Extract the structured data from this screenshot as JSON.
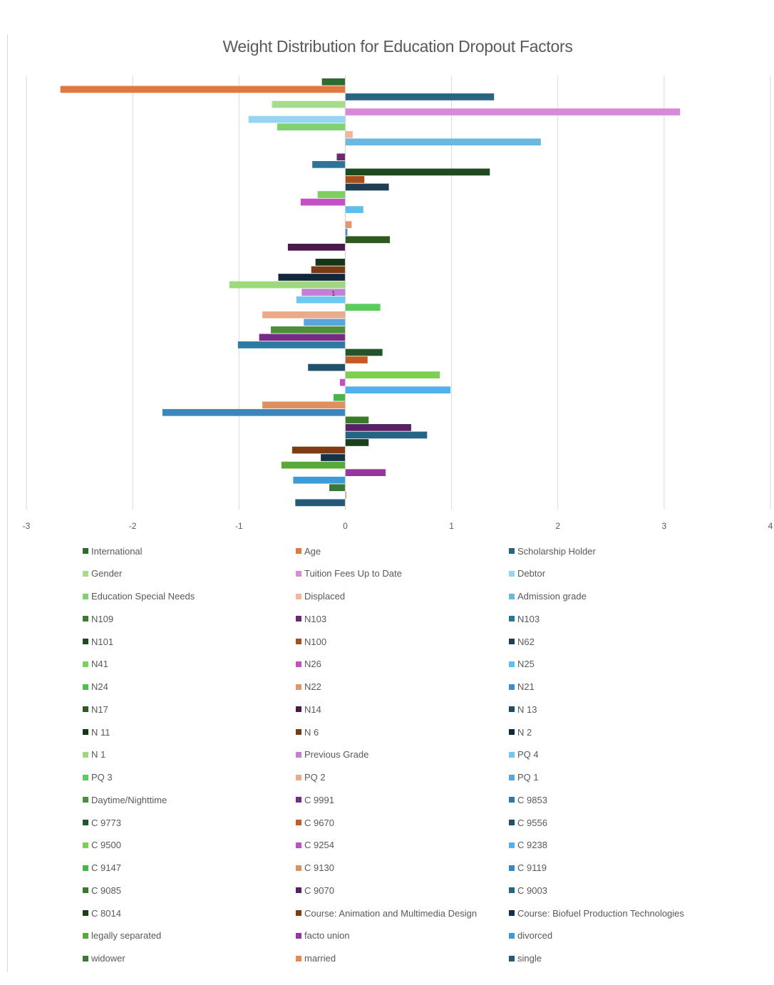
{
  "chart_data": {
    "type": "bar",
    "orientation": "horizontal",
    "title": "Weight Distribution for Education Dropout Factors",
    "xlim": [
      -3,
      4
    ],
    "xticks": [
      "-3",
      "-2",
      "-1",
      "0",
      "1",
      "2",
      "3",
      "4"
    ],
    "grid": true,
    "legend_position": "bottom",
    "annotations": [
      "1"
    ],
    "series": [
      {
        "name": "International",
        "value": -0.22,
        "color": "#2e6b2e"
      },
      {
        "name": "Age",
        "value": -2.68,
        "color": "#e0783f"
      },
      {
        "name": "Scholarship Holder",
        "value": 1.4,
        "color": "#2b6482"
      },
      {
        "name": "Gender",
        "value": -0.69,
        "color": "#a6dc8c"
      },
      {
        "name": "Tuition Fees Up to Date",
        "value": 3.15,
        "color": "#d88ad8"
      },
      {
        "name": "Debtor",
        "value": -0.91,
        "color": "#94d6f2"
      },
      {
        "name": "Education Special Needs",
        "value": -0.64,
        "color": "#7fd36c"
      },
      {
        "name": "Displaced",
        "value": 0.07,
        "color": "#f2b595"
      },
      {
        "name": "Admission grade",
        "value": 1.84,
        "color": "#6cb8e0"
      },
      {
        "name": "N109",
        "value": 0.0,
        "color": "#3e7a2e"
      },
      {
        "name": "N103",
        "value": -0.08,
        "color": "#6a2a6e"
      },
      {
        "name": "N103",
        "value": -0.31,
        "color": "#2f7498"
      },
      {
        "name": "N101",
        "value": 1.36,
        "color": "#1f4a1f"
      },
      {
        "name": "N100",
        "value": 0.18,
        "color": "#a84e1c"
      },
      {
        "name": "N62",
        "value": 0.41,
        "color": "#1f3e54"
      },
      {
        "name": "N41",
        "value": -0.26,
        "color": "#7fcf5e"
      },
      {
        "name": "N26",
        "value": -0.42,
        "color": "#c451c4"
      },
      {
        "name": "N25",
        "value": 0.17,
        "color": "#5cc0ef"
      },
      {
        "name": "N24",
        "value": 0.0,
        "color": "#4fbf4f"
      },
      {
        "name": "N22",
        "value": 0.06,
        "color": "#e6956a"
      },
      {
        "name": "N21",
        "value": 0.02,
        "color": "#3a8ecf"
      },
      {
        "name": "N17",
        "value": 0.42,
        "color": "#2f5a1f"
      },
      {
        "name": "N14",
        "value": -0.54,
        "color": "#4a1a4a"
      },
      {
        "name": "N 13",
        "value": 0.0,
        "color": "#1f4a66"
      },
      {
        "name": "N 11",
        "value": -0.28,
        "color": "#173617"
      },
      {
        "name": "N 6",
        "value": -0.32,
        "color": "#7a3a14"
      },
      {
        "name": "N 2",
        "value": -0.63,
        "color": "#12283a"
      },
      {
        "name": "N 1",
        "value": -1.09,
        "color": "#9fd97f"
      },
      {
        "name": "Previous Grade",
        "value": -0.41,
        "color": "#c47fd6"
      },
      {
        "name": "PQ 4",
        "value": -0.46,
        "color": "#6fc8f0"
      },
      {
        "name": "PQ 3",
        "value": 0.33,
        "color": "#5bcb5b"
      },
      {
        "name": "PQ 2",
        "value": -0.78,
        "color": "#ebab8a"
      },
      {
        "name": "PQ 1",
        "value": -0.39,
        "color": "#5aa6dc"
      },
      {
        "name": "Daytime/Nighttime",
        "value": -0.7,
        "color": "#4e8f3a"
      },
      {
        "name": "C 9991",
        "value": -0.81,
        "color": "#772a86"
      },
      {
        "name": "C 9853",
        "value": -1.01,
        "color": "#2f7aa3"
      },
      {
        "name": "C 9773",
        "value": 0.35,
        "color": "#24552a"
      },
      {
        "name": "C 9670",
        "value": 0.21,
        "color": "#c45a24"
      },
      {
        "name": "C 9556",
        "value": -0.35,
        "color": "#21506b"
      },
      {
        "name": "C 9500",
        "value": 0.89,
        "color": "#7dcf52"
      },
      {
        "name": "C 9254",
        "value": -0.05,
        "color": "#c44ec4"
      },
      {
        "name": "C 9238",
        "value": 0.99,
        "color": "#4fb2ee"
      },
      {
        "name": "C 9147",
        "value": -0.11,
        "color": "#47b547"
      },
      {
        "name": "C 9130",
        "value": -0.78,
        "color": "#e08f5f"
      },
      {
        "name": "C 9119",
        "value": -1.72,
        "color": "#3b86bc"
      },
      {
        "name": "C 9085",
        "value": 0.22,
        "color": "#3a7a2a"
      },
      {
        "name": "C 9070",
        "value": 0.62,
        "color": "#5a2066"
      },
      {
        "name": "C 9003",
        "value": 0.77,
        "color": "#266485"
      },
      {
        "name": "C 8014",
        "value": 0.22,
        "color": "#1a401a"
      },
      {
        "name": "Course: Animation and Multimedia Design",
        "value": -0.5,
        "color": "#7f3c14"
      },
      {
        "name": "Course: Biofuel Production Technologies",
        "value": -0.23,
        "color": "#15304a"
      },
      {
        "name": "legally separated",
        "value": -0.6,
        "color": "#5aa83a"
      },
      {
        "name": "facto union",
        "value": 0.38,
        "color": "#9a349e"
      },
      {
        "name": "divorced",
        "value": -0.49,
        "color": "#3f9bd4"
      },
      {
        "name": "widower",
        "value": -0.15,
        "color": "#387a34"
      },
      {
        "name": "married",
        "value": 0.01,
        "color": "#e88a4a"
      },
      {
        "name": "single",
        "value": -0.47,
        "color": "#245a78"
      }
    ]
  }
}
